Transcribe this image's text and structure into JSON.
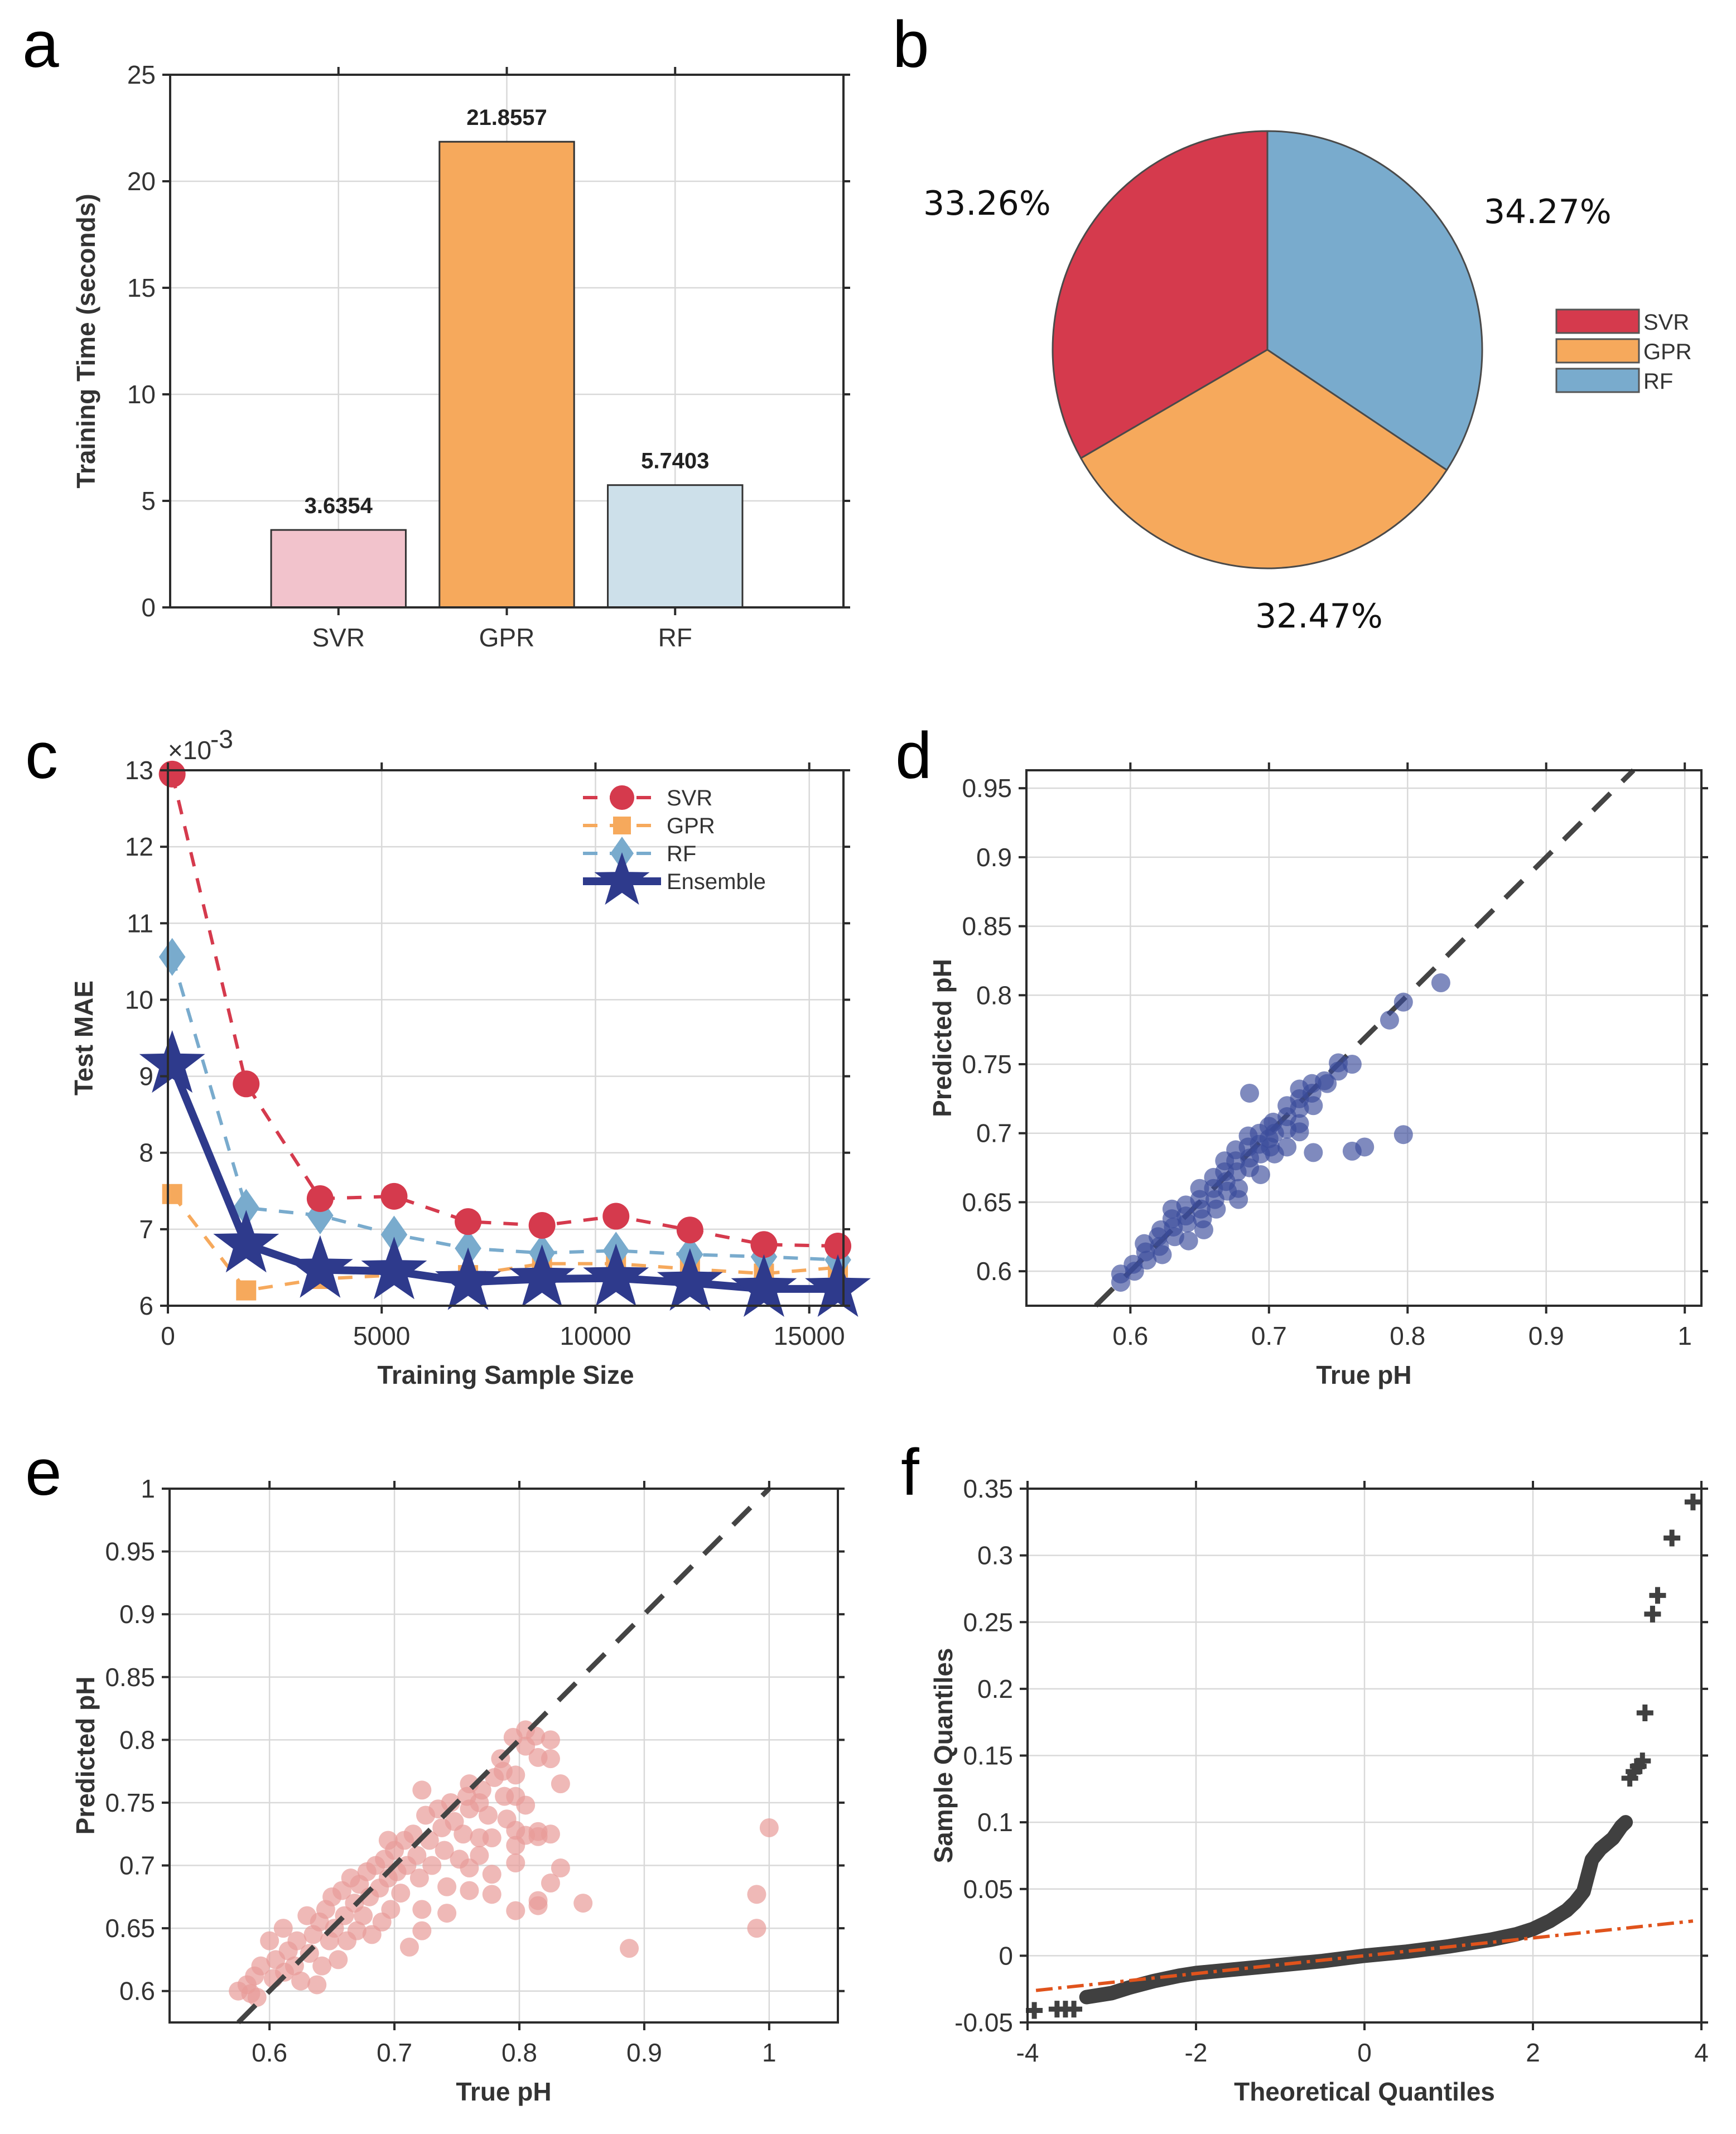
{
  "panels": {
    "a": "a",
    "b": "b",
    "c": "c",
    "d": "d",
    "e": "e",
    "f": "f"
  },
  "colors": {
    "svr": "#d53a4d",
    "gpr": "#f6a95c",
    "rf": "#79abcd",
    "ensemble": "#2e3a8c",
    "svr_bar": "#f2c3cc",
    "rf_bar": "#cde0ea",
    "scatter_d": "#3b4c9b",
    "scatter_e": "#e89b98",
    "qq_points": "#404040",
    "qq_ref": "#e0531c",
    "identity_line": "#444444"
  },
  "chart_data": [
    {
      "id": "a",
      "type": "bar",
      "title": "",
      "xlabel": "",
      "ylabel": "Training Time (seconds)",
      "categories": [
        "SVR",
        "GPR",
        "RF"
      ],
      "values": [
        3.6354,
        21.8557,
        5.7403
      ],
      "data_labels": [
        "3.6354",
        "21.8557",
        "5.7403"
      ],
      "ylim": [
        0,
        25
      ],
      "xlim": [
        0,
        4
      ],
      "yticks": [
        0,
        5,
        10,
        15,
        20,
        25
      ],
      "ytick_labels": [
        "0",
        "5",
        "10",
        "15",
        "20",
        "25"
      ],
      "grid": true
    },
    {
      "id": "b",
      "type": "pie",
      "labels": [
        "SVR",
        "GPR",
        "RF"
      ],
      "values": [
        33.26,
        32.47,
        34.27
      ],
      "value_labels": [
        "33.26%",
        "32.47%",
        "34.27%"
      ],
      "legend": [
        "SVR",
        "GPR",
        "RF"
      ],
      "legend_position": "right"
    },
    {
      "id": "c",
      "type": "line",
      "xlabel": "Training Sample Size",
      "ylabel": "Test MAE",
      "y_exponent_label": "×10",
      "y_exponent": "-3",
      "x": [
        100,
        1830,
        3560,
        5290,
        7020,
        8750,
        10480,
        12210,
        13940,
        15670
      ],
      "series": [
        {
          "name": "SVR",
          "style": "dashed",
          "marker": "circle",
          "values": [
            12.95,
            8.9,
            7.4,
            7.43,
            7.1,
            7.05,
            7.17,
            6.99,
            6.8,
            6.78
          ]
        },
        {
          "name": "GPR",
          "style": "dashed",
          "marker": "square",
          "values": [
            7.46,
            6.2,
            6.35,
            6.4,
            6.4,
            6.55,
            6.55,
            6.48,
            6.42,
            6.5
          ]
        },
        {
          "name": "RF",
          "style": "dashed",
          "marker": "diamond",
          "values": [
            10.56,
            7.28,
            7.18,
            6.93,
            6.75,
            6.69,
            6.72,
            6.67,
            6.64,
            6.6
          ]
        },
        {
          "name": "Ensemble",
          "style": "solid",
          "marker": "star",
          "values": [
            9.15,
            6.8,
            6.47,
            6.45,
            6.31,
            6.35,
            6.36,
            6.3,
            6.22,
            6.22
          ]
        }
      ],
      "xlim": [
        0,
        15800
      ],
      "ylim": [
        6,
        13
      ],
      "xticks": [
        0,
        5000,
        10000,
        15000
      ],
      "xtick_labels": [
        "0",
        "5000",
        "10000",
        "15000"
      ],
      "yticks": [
        6,
        7,
        8,
        9,
        10,
        11,
        12,
        13
      ],
      "ytick_labels": [
        "6",
        "7",
        "8",
        "9",
        "10",
        "11",
        "12",
        "13"
      ],
      "legend": [
        "SVR",
        "GPR",
        "RF",
        "Ensemble"
      ],
      "legend_position": "top-right",
      "grid": true
    },
    {
      "id": "d",
      "type": "scatter",
      "xlabel": "True pH",
      "ylabel": "Predicted pH",
      "xlim": [
        0.525,
        1.012
      ],
      "ylim": [
        0.575,
        0.963
      ],
      "xticks": [
        0.6,
        0.7,
        0.8,
        0.9,
        1
      ],
      "xtick_labels": [
        "0.6",
        "0.7",
        "0.8",
        "0.9",
        "1"
      ],
      "yticks": [
        0.6,
        0.65,
        0.7,
        0.75,
        0.8,
        0.85,
        0.9,
        0.95
      ],
      "ytick_labels": [
        "0.6",
        "0.65",
        "0.7",
        "0.75",
        "0.8",
        "0.85",
        "0.9",
        "0.95"
      ],
      "reference_line": "y = x (dashed)",
      "points": [
        [
          0.593,
          0.598
        ],
        [
          0.593,
          0.592
        ],
        [
          0.602,
          0.605
        ],
        [
          0.603,
          0.6
        ],
        [
          0.61,
          0.62
        ],
        [
          0.611,
          0.614
        ],
        [
          0.612,
          0.608
        ],
        [
          0.62,
          0.625
        ],
        [
          0.621,
          0.618
        ],
        [
          0.622,
          0.63
        ],
        [
          0.623,
          0.612
        ],
        [
          0.63,
          0.638
        ],
        [
          0.63,
          0.645
        ],
        [
          0.631,
          0.632
        ],
        [
          0.632,
          0.625
        ],
        [
          0.64,
          0.648
        ],
        [
          0.64,
          0.64
        ],
        [
          0.641,
          0.635
        ],
        [
          0.642,
          0.622
        ],
        [
          0.65,
          0.66
        ],
        [
          0.65,
          0.652
        ],
        [
          0.651,
          0.645
        ],
        [
          0.652,
          0.638
        ],
        [
          0.653,
          0.63
        ],
        [
          0.66,
          0.668
        ],
        [
          0.66,
          0.66
        ],
        [
          0.661,
          0.652
        ],
        [
          0.662,
          0.645
        ],
        [
          0.668,
          0.68
        ],
        [
          0.668,
          0.672
        ],
        [
          0.669,
          0.665
        ],
        [
          0.67,
          0.658
        ],
        [
          0.676,
          0.688
        ],
        [
          0.676,
          0.68
        ],
        [
          0.677,
          0.672
        ],
        [
          0.678,
          0.66
        ],
        [
          0.678,
          0.652
        ],
        [
          0.685,
          0.698
        ],
        [
          0.685,
          0.69
        ],
        [
          0.686,
          0.682
        ],
        [
          0.686,
          0.675
        ],
        [
          0.686,
          0.729
        ],
        [
          0.693,
          0.7
        ],
        [
          0.693,
          0.692
        ],
        [
          0.694,
          0.685
        ],
        [
          0.694,
          0.67
        ],
        [
          0.7,
          0.705
        ],
        [
          0.7,
          0.696
        ],
        [
          0.701,
          0.69
        ],
        [
          0.703,
          0.708
        ],
        [
          0.704,
          0.7
        ],
        [
          0.704,
          0.685
        ],
        [
          0.713,
          0.72
        ],
        [
          0.713,
          0.712
        ],
        [
          0.713,
          0.69
        ],
        [
          0.713,
          0.703
        ],
        [
          0.722,
          0.732
        ],
        [
          0.722,
          0.725
        ],
        [
          0.722,
          0.718
        ],
        [
          0.722,
          0.707
        ],
        [
          0.722,
          0.701
        ],
        [
          0.731,
          0.736
        ],
        [
          0.731,
          0.729
        ],
        [
          0.732,
          0.72
        ],
        [
          0.732,
          0.686
        ],
        [
          0.74,
          0.738
        ],
        [
          0.742,
          0.736
        ],
        [
          0.75,
          0.751
        ],
        [
          0.75,
          0.745
        ],
        [
          0.76,
          0.75
        ],
        [
          0.76,
          0.687
        ],
        [
          0.769,
          0.69
        ],
        [
          0.787,
          0.782
        ],
        [
          0.797,
          0.795
        ],
        [
          0.797,
          0.699
        ],
        [
          0.824,
          0.809
        ]
      ],
      "grid": true
    },
    {
      "id": "e",
      "type": "scatter",
      "xlabel": "True pH",
      "ylabel": "Predicted pH",
      "xlim": [
        0.52,
        1.055
      ],
      "ylim": [
        0.575,
        1.0
      ],
      "xticks": [
        0.6,
        0.7,
        0.8,
        0.9,
        1
      ],
      "xtick_labels": [
        "0.6",
        "0.7",
        "0.8",
        "0.9",
        "1"
      ],
      "yticks": [
        0.6,
        0.65,
        0.7,
        0.75,
        0.8,
        0.85,
        0.9,
        0.95,
        1
      ],
      "ytick_labels": [
        "0.6",
        "0.65",
        "0.7",
        "0.75",
        "0.8",
        "0.85",
        "0.9",
        "0.95",
        "1"
      ],
      "reference_line": "y = x (dashed)",
      "points": [
        [
          0.575,
          0.6
        ],
        [
          0.582,
          0.605
        ],
        [
          0.585,
          0.598
        ],
        [
          0.588,
          0.612
        ],
        [
          0.59,
          0.595
        ],
        [
          0.593,
          0.62
        ],
        [
          0.6,
          0.64
        ],
        [
          0.603,
          0.61
        ],
        [
          0.605,
          0.625
        ],
        [
          0.611,
          0.65
        ],
        [
          0.612,
          0.615
        ],
        [
          0.615,
          0.632
        ],
        [
          0.62,
          0.62
        ],
        [
          0.622,
          0.64
        ],
        [
          0.625,
          0.608
        ],
        [
          0.63,
          0.66
        ],
        [
          0.632,
          0.63
        ],
        [
          0.635,
          0.645
        ],
        [
          0.638,
          0.605
        ],
        [
          0.64,
          0.655
        ],
        [
          0.642,
          0.62
        ],
        [
          0.645,
          0.665
        ],
        [
          0.648,
          0.64
        ],
        [
          0.65,
          0.675
        ],
        [
          0.652,
          0.65
        ],
        [
          0.655,
          0.625
        ],
        [
          0.658,
          0.68
        ],
        [
          0.66,
          0.66
        ],
        [
          0.662,
          0.64
        ],
        [
          0.665,
          0.69
        ],
        [
          0.668,
          0.67
        ],
        [
          0.67,
          0.648
        ],
        [
          0.672,
          0.685
        ],
        [
          0.675,
          0.66
        ],
        [
          0.678,
          0.695
        ],
        [
          0.68,
          0.675
        ],
        [
          0.682,
          0.645
        ],
        [
          0.685,
          0.7
        ],
        [
          0.688,
          0.682
        ],
        [
          0.69,
          0.655
        ],
        [
          0.692,
          0.705
        ],
        [
          0.695,
          0.69
        ],
        [
          0.697,
          0.665
        ],
        [
          0.695,
          0.72
        ],
        [
          0.7,
          0.712
        ],
        [
          0.702,
          0.695
        ],
        [
          0.705,
          0.678
        ],
        [
          0.708,
          0.72
        ],
        [
          0.71,
          0.7
        ],
        [
          0.712,
          0.635
        ],
        [
          0.715,
          0.725
        ],
        [
          0.718,
          0.708
        ],
        [
          0.72,
          0.69
        ],
        [
          0.722,
          0.76
        ],
        [
          0.722,
          0.665
        ],
        [
          0.722,
          0.648
        ],
        [
          0.725,
          0.74
        ],
        [
          0.728,
          0.72
        ],
        [
          0.73,
          0.7
        ],
        [
          0.735,
          0.745
        ],
        [
          0.738,
          0.73
        ],
        [
          0.74,
          0.712
        ],
        [
          0.742,
          0.683
        ],
        [
          0.742,
          0.662
        ],
        [
          0.745,
          0.75
        ],
        [
          0.748,
          0.735
        ],
        [
          0.752,
          0.705
        ],
        [
          0.755,
          0.725
        ],
        [
          0.758,
          0.755
        ],
        [
          0.76,
          0.765
        ],
        [
          0.76,
          0.745
        ],
        [
          0.76,
          0.698
        ],
        [
          0.76,
          0.68
        ],
        [
          0.768,
          0.75
        ],
        [
          0.768,
          0.722
        ],
        [
          0.768,
          0.708
        ],
        [
          0.77,
          0.76
        ],
        [
          0.775,
          0.74
        ],
        [
          0.778,
          0.722
        ],
        [
          0.778,
          0.693
        ],
        [
          0.778,
          0.677
        ],
        [
          0.78,
          0.77
        ],
        [
          0.785,
          0.785
        ],
        [
          0.787,
          0.775
        ],
        [
          0.788,
          0.755
        ],
        [
          0.79,
          0.737
        ],
        [
          0.795,
          0.802
        ],
        [
          0.797,
          0.772
        ],
        [
          0.797,
          0.755
        ],
        [
          0.797,
          0.728
        ],
        [
          0.797,
          0.716
        ],
        [
          0.797,
          0.702
        ],
        [
          0.797,
          0.664
        ],
        [
          0.805,
          0.808
        ],
        [
          0.805,
          0.795
        ],
        [
          0.805,
          0.748
        ],
        [
          0.805,
          0.724
        ],
        [
          0.813,
          0.803
        ],
        [
          0.815,
          0.786
        ],
        [
          0.815,
          0.727
        ],
        [
          0.815,
          0.723
        ],
        [
          0.815,
          0.672
        ],
        [
          0.815,
          0.668
        ],
        [
          0.825,
          0.8
        ],
        [
          0.825,
          0.785
        ],
        [
          0.825,
          0.725
        ],
        [
          0.825,
          0.686
        ],
        [
          0.833,
          0.765
        ],
        [
          0.833,
          0.698
        ],
        [
          0.851,
          0.67
        ],
        [
          0.888,
          0.634
        ],
        [
          0.99,
          0.677
        ],
        [
          0.99,
          0.65
        ],
        [
          1.0,
          0.73
        ]
      ],
      "grid": true
    },
    {
      "id": "f",
      "type": "scatter",
      "subtype": "qq-plot",
      "xlabel": "Theoretical Quantiles",
      "ylabel": "Sample Quantiles",
      "xlim": [
        -4,
        4
      ],
      "ylim": [
        -0.05,
        0.35
      ],
      "xticks": [
        -4,
        -2,
        0,
        2,
        4
      ],
      "xtick_labels": [
        "-4",
        "-2",
        "0",
        "2",
        "4"
      ],
      "yticks": [
        -0.05,
        0,
        0.05,
        0.1,
        0.15,
        0.2,
        0.25,
        0.3,
        0.35
      ],
      "ytick_labels": [
        "-0.05",
        "0",
        "0.05",
        "0.1",
        "0.15",
        "0.2",
        "0.25",
        "0.3",
        "0.35"
      ],
      "reference_line": {
        "from": [
          -3.9,
          -0.026
        ],
        "to": [
          3.9,
          0.026
        ],
        "style": "dash-dot"
      },
      "curve_points": [
        [
          -3.3,
          -0.031
        ],
        [
          -3.0,
          -0.028
        ],
        [
          -2.8,
          -0.024
        ],
        [
          -2.5,
          -0.019
        ],
        [
          -2.2,
          -0.015
        ],
        [
          -2.0,
          -0.013
        ],
        [
          -1.5,
          -0.01
        ],
        [
          -1.0,
          -0.007
        ],
        [
          -0.5,
          -0.004
        ],
        [
          0.0,
          0.0
        ],
        [
          0.5,
          0.003
        ],
        [
          1.0,
          0.007
        ],
        [
          1.5,
          0.012
        ],
        [
          1.8,
          0.016
        ],
        [
          2.0,
          0.02
        ],
        [
          2.2,
          0.026
        ],
        [
          2.4,
          0.034
        ],
        [
          2.5,
          0.04
        ],
        [
          2.6,
          0.048
        ],
        [
          2.65,
          0.06
        ],
        [
          2.7,
          0.072
        ],
        [
          2.8,
          0.08
        ],
        [
          2.95,
          0.088
        ],
        [
          3.05,
          0.097
        ],
        [
          3.1,
          0.1
        ]
      ],
      "outlier_points": [
        [
          -3.92,
          -0.041
        ],
        [
          -3.65,
          -0.04
        ],
        [
          -3.55,
          -0.04
        ],
        [
          -3.45,
          -0.04
        ],
        [
          3.15,
          0.133
        ],
        [
          3.2,
          0.138
        ],
        [
          3.25,
          0.142
        ],
        [
          3.3,
          0.146
        ],
        [
          3.33,
          0.182
        ],
        [
          3.42,
          0.256
        ],
        [
          3.48,
          0.27
        ],
        [
          3.65,
          0.313
        ],
        [
          3.9,
          0.34
        ]
      ],
      "grid": true
    }
  ]
}
